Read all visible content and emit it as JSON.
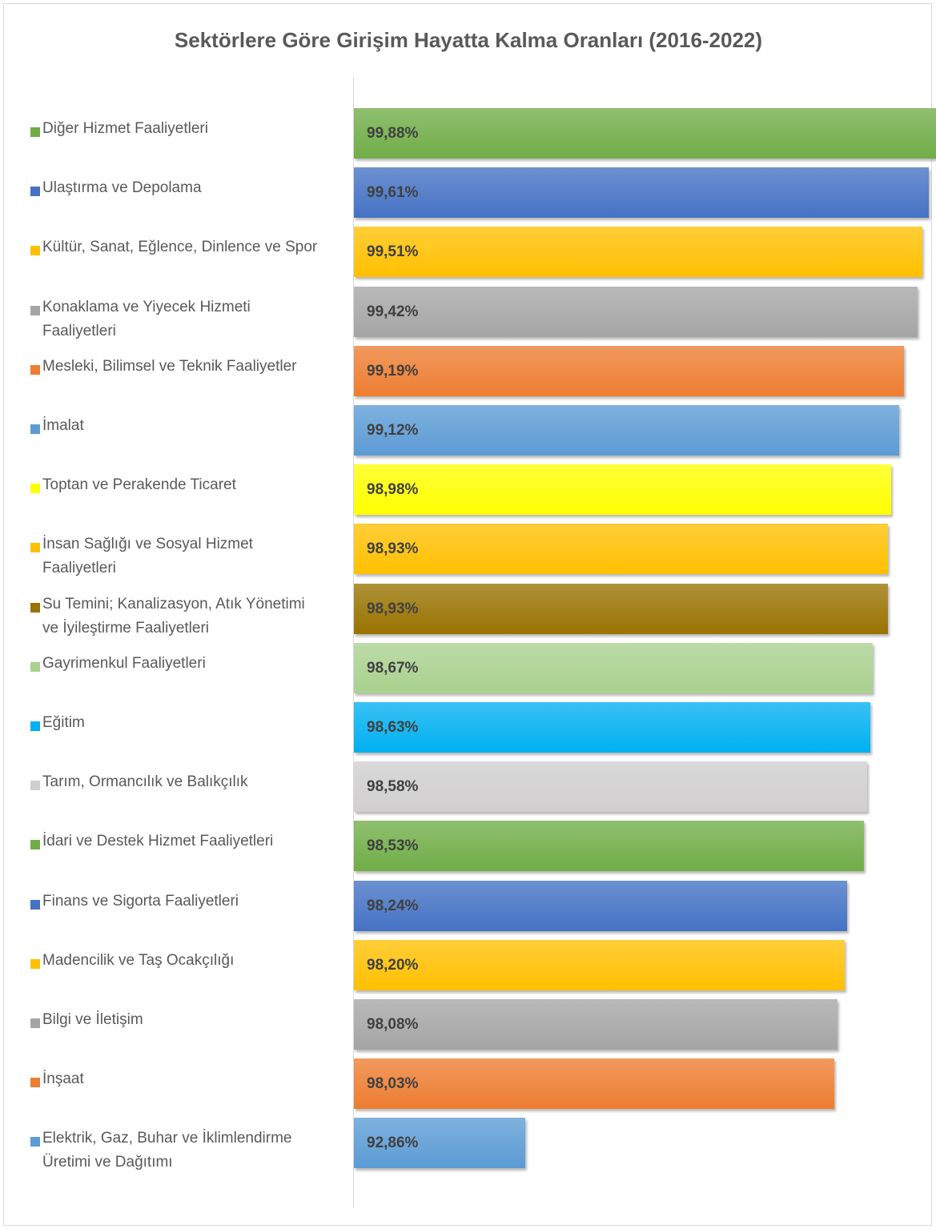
{
  "chart_data": {
    "type": "bar",
    "orientation": "horizontal",
    "title": "Sektörlere Göre Girişim Hayatta Kalma Oranları (2016-2022)",
    "xlabel": "",
    "ylabel": "",
    "xlim": [
      90,
      100
    ],
    "grid": false,
    "legend_position": "left",
    "categories": [
      "Diğer Hizmet Faaliyetleri",
      "Ulaştırma ve Depolama",
      "Kültür, Sanat, Eğlence, Dinlence ve Spor",
      "Konaklama ve Yiyecek Hizmeti Faaliyetleri",
      "Mesleki, Bilimsel ve Teknik Faaliyetler",
      "İmalat",
      "Toptan ve Perakende Ticaret",
      "İnsan Sağlığı ve Sosyal Hizmet Faaliyetleri",
      "Su Temini; Kanalizasyon, Atık Yönetimi ve İyileştirme Faaliyetleri",
      "Gayrimenkul Faaliyetleri",
      "Eğitim",
      "Tarım, Ormancılık ve Balıkçılık",
      "İdari ve Destek Hizmet Faaliyetleri",
      "Finans ve Sigorta Faaliyetleri",
      "Madencilik ve Taş Ocakçılığı",
      "Bilgi ve İletişim",
      "İnşaat",
      "Elektrik, Gaz, Buhar ve İklimlendirme Üretimi ve Dağıtımı"
    ],
    "values": [
      99.88,
      99.61,
      99.51,
      99.42,
      99.19,
      99.12,
      98.98,
      98.93,
      98.93,
      98.67,
      98.63,
      98.58,
      98.53,
      98.24,
      98.2,
      98.08,
      98.03,
      92.86
    ],
    "value_labels": [
      "99,88%",
      "99,61%",
      "99,51%",
      "99,42%",
      "99,19%",
      "99,12%",
      "98,98%",
      "98,93%",
      "98,93%",
      "98,67%",
      "98,63%",
      "98,58%",
      "98,53%",
      "98,24%",
      "98,20%",
      "98,08%",
      "98,03%",
      "92,86%"
    ],
    "colors": [
      "#70AD47",
      "#4472C4",
      "#FFC000",
      "#A5A5A5",
      "#ED7D31",
      "#5B9BD5",
      "#FFFF00",
      "#FFC000",
      "#997300",
      "#A9D18E",
      "#00B0F0",
      "#D0CECE",
      "#70AD47",
      "#4472C4",
      "#FFC000",
      "#A5A5A5",
      "#ED7D31",
      "#5B9BD5"
    ]
  }
}
